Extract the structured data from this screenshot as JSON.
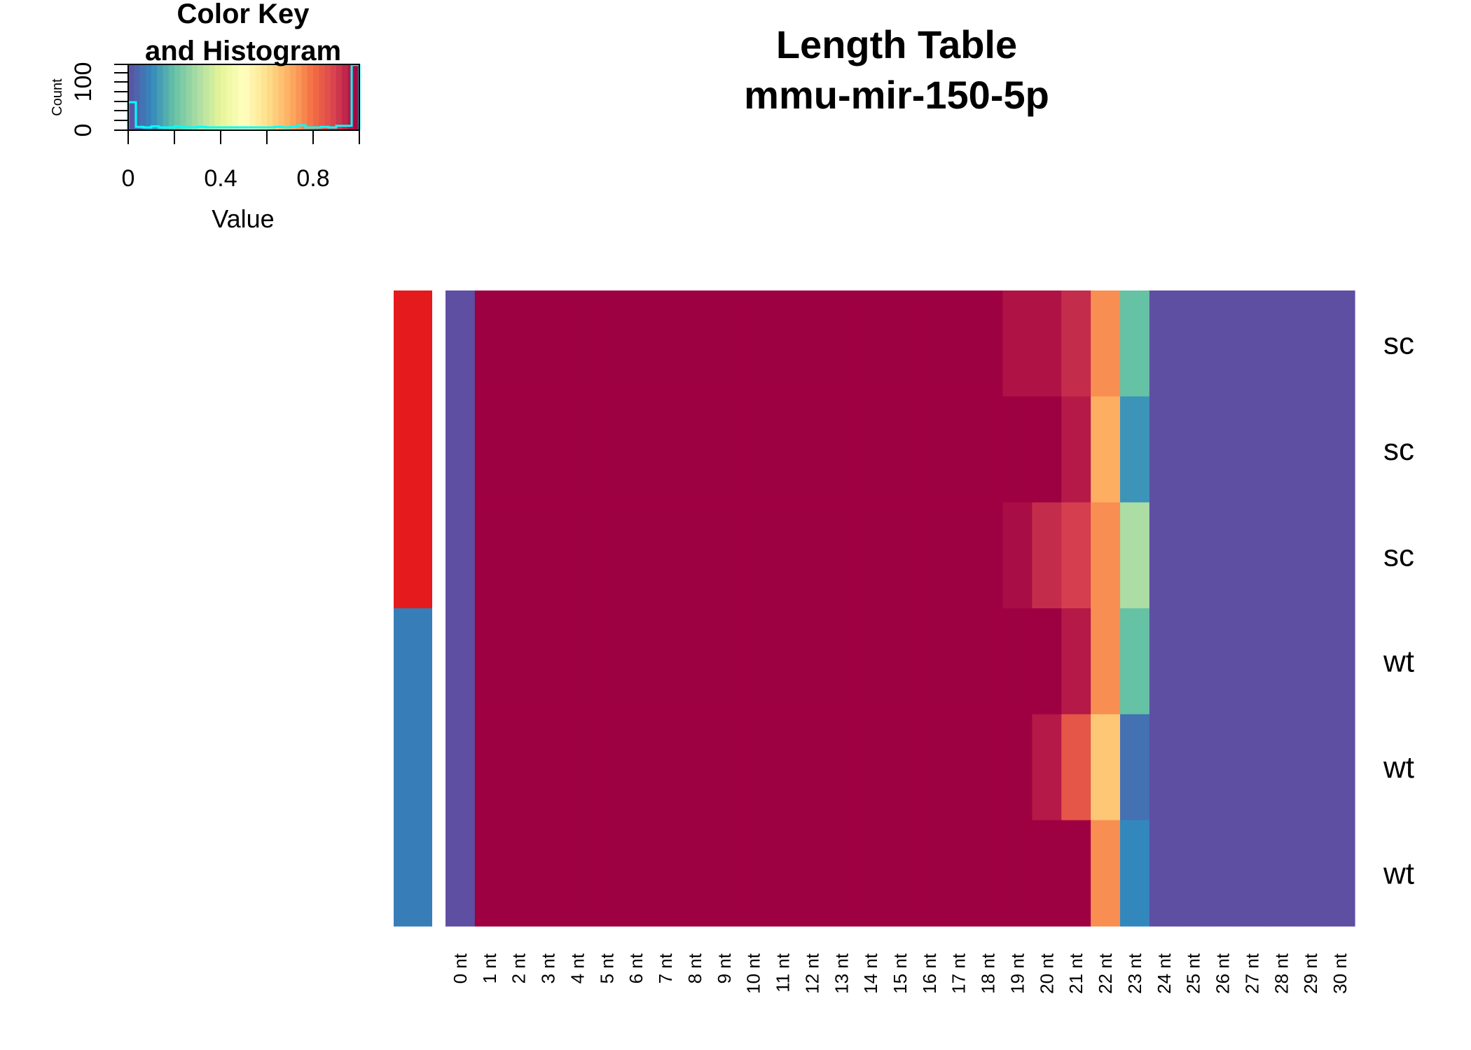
{
  "chart_data": {
    "type": "heatmap",
    "title": "Length Table",
    "subtitle": "mmu-mir-150-5p",
    "columns": [
      "0 nt",
      "1 nt",
      "2 nt",
      "3 nt",
      "4 nt",
      "5 nt",
      "6 nt",
      "7 nt",
      "8 nt",
      "9 nt",
      "10 nt",
      "11 nt",
      "12 nt",
      "13 nt",
      "14 nt",
      "15 nt",
      "16 nt",
      "17 nt",
      "18 nt",
      "19 nt",
      "20 nt",
      "21 nt",
      "22 nt",
      "23 nt",
      "24 nt",
      "25 nt",
      "26 nt",
      "27 nt",
      "28 nt",
      "29 nt",
      "30 nt"
    ],
    "rows": [
      "sc",
      "sc",
      "sc",
      "wt",
      "wt",
      "wt"
    ],
    "row_groups": [
      {
        "group": "sc",
        "color": "#E41A1C"
      },
      {
        "group": "sc",
        "color": "#E41A1C"
      },
      {
        "group": "sc",
        "color": "#E41A1C"
      },
      {
        "group": "wt",
        "color": "#377EB8"
      },
      {
        "group": "wt",
        "color": "#377EB8"
      },
      {
        "group": "wt",
        "color": "#377EB8"
      }
    ],
    "values": [
      [
        0,
        1,
        1,
        1,
        1,
        1,
        1,
        1,
        1,
        1,
        1,
        1,
        1,
        1,
        1,
        1,
        1,
        1,
        1,
        0.97,
        0.97,
        0.93,
        0.75,
        0.2,
        0,
        0,
        0,
        0,
        0,
        0,
        0
      ],
      [
        0,
        1,
        1,
        1,
        1,
        1,
        1,
        1,
        1,
        1,
        1,
        1,
        1,
        1,
        1,
        1,
        1,
        1,
        1,
        1,
        1,
        0.96,
        0.7,
        0.12,
        0,
        0,
        0,
        0,
        0,
        0,
        0
      ],
      [
        0,
        1,
        1,
        1,
        1,
        1,
        1,
        1,
        1,
        1,
        1,
        1,
        1,
        1,
        1,
        1,
        1,
        1,
        1,
        0.98,
        0.93,
        0.9,
        0.75,
        0.3,
        0,
        0,
        0,
        0,
        0,
        0,
        0
      ],
      [
        0,
        1,
        1,
        1,
        1,
        1,
        1,
        1,
        1,
        1,
        1,
        1,
        1,
        1,
        1,
        1,
        1,
        1,
        1,
        1,
        1,
        0.96,
        0.75,
        0.2,
        0,
        0,
        0,
        0,
        0,
        0,
        0
      ],
      [
        0,
        1,
        1,
        1,
        1,
        1,
        1,
        1,
        1,
        1,
        1,
        1,
        1,
        1,
        1,
        1,
        1,
        1,
        1,
        1,
        0.96,
        0.85,
        0.65,
        0.06,
        0,
        0,
        0,
        0,
        0,
        0,
        0
      ],
      [
        0,
        1,
        1,
        1,
        1,
        1,
        1,
        1,
        1,
        1,
        1,
        1,
        1,
        1,
        1,
        1,
        1,
        1,
        1,
        1,
        1,
        1,
        0.75,
        0.1,
        0,
        0,
        0,
        0,
        0,
        0,
        0
      ]
    ],
    "color_scale": "Spectral (reversed)",
    "color_key": {
      "title_line1": "Color Key",
      "title_line2": "and Histogram",
      "xlabel": "Value",
      "ylabel": "Count",
      "x_ticks": [
        "0",
        "0.4",
        "0.8"
      ],
      "y_ticks": [
        "0",
        "100"
      ],
      "xlim": [
        0,
        1
      ],
      "ylim": [
        0,
        120
      ],
      "histogram_color": "#00FFFF"
    },
    "grid": false,
    "legend": "top-left"
  }
}
